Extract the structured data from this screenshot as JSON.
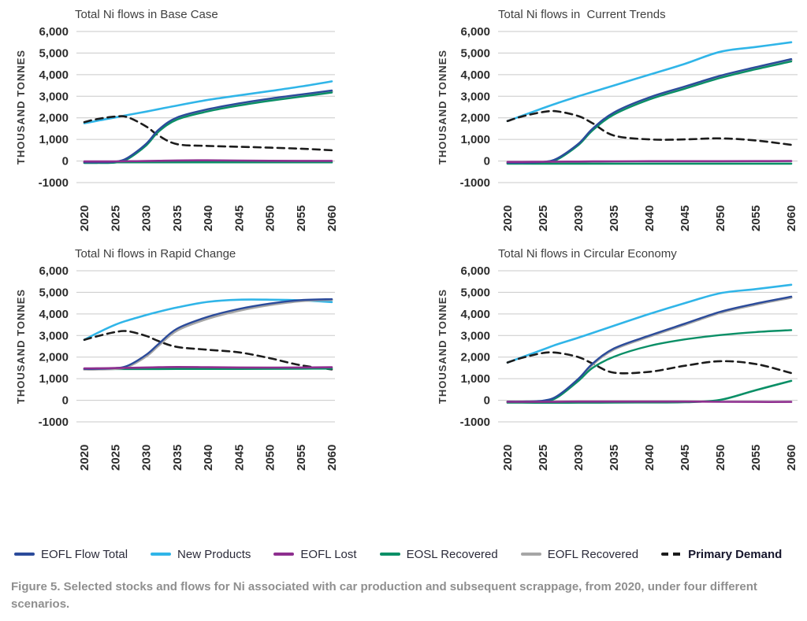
{
  "page": {
    "background": "#ffffff"
  },
  "colors": {
    "eofl_flow_total": "#2b4b9b",
    "new_products": "#30b5e8",
    "eofl_lost": "#8e2f8f",
    "eosl_recovered": "#0a8f66",
    "eofl_recovered": "#a6a6a6",
    "primary_demand": "#1c1c1c",
    "gridline": "#c9c9c9"
  },
  "legend": {
    "items": [
      {
        "key": "eofl-flow-total",
        "label": "EOFL Flow Total",
        "color": "#2b4b9b",
        "dash": false,
        "bold": false
      },
      {
        "key": "new-products",
        "label": "New Products",
        "color": "#30b5e8",
        "dash": false,
        "bold": false
      },
      {
        "key": "eofl-lost",
        "label": "EOFL Lost",
        "color": "#8e2f8f",
        "dash": false,
        "bold": false
      },
      {
        "key": "eosl-recovered",
        "label": "EOSL Recovered",
        "color": "#0a8f66",
        "dash": false,
        "bold": false
      },
      {
        "key": "eofl-recovered",
        "label": "EOFL Recovered",
        "color": "#a6a6a6",
        "dash": false,
        "bold": false
      },
      {
        "key": "primary-demand",
        "label": "Primary Demand",
        "color": "#1c1c1c",
        "dash": true,
        "bold": true
      }
    ]
  },
  "caption": {
    "text": "Figure 5. Selected stocks and flows for Ni associated with car production and subsequent scrappage, from 2020, under four different scenarios."
  },
  "chart_data": [
    {
      "type": "line",
      "title": "Total Ni flows in Base Case",
      "ylabel": "THOUSAND TONNES",
      "ylim": [
        -1000,
        6000
      ],
      "xlim": [
        2020,
        2060
      ],
      "grid": true,
      "yticks": [
        {
          "value": 6000,
          "label": "6,000"
        },
        {
          "value": 5000,
          "label": "5,000"
        },
        {
          "value": 4000,
          "label": "4,000"
        },
        {
          "value": 3000,
          "label": "3,000"
        },
        {
          "value": 2000,
          "label": "2,000"
        },
        {
          "value": 1000,
          "label": "1,000"
        },
        {
          "value": 0,
          "label": "0"
        },
        {
          "value": -1000,
          "label": "-1000"
        }
      ],
      "xticks": [
        2020,
        2025,
        2030,
        2035,
        2040,
        2045,
        2050,
        2055,
        2060
      ],
      "x": [
        2020,
        2022,
        2025,
        2027,
        2030,
        2032,
        2035,
        2040,
        2045,
        2050,
        2055,
        2060
      ],
      "series": [
        {
          "key": "new-products",
          "name": "New Products",
          "color": "#30b5e8",
          "dash": false,
          "width": 2.6,
          "values": [
            1750,
            1860,
            2020,
            2130,
            2290,
            2400,
            2570,
            2830,
            3040,
            3240,
            3450,
            3690
          ]
        },
        {
          "key": "primary-demand",
          "name": "Primary Demand",
          "color": "#1c1c1c",
          "dash": true,
          "width": 2.6,
          "values": [
            1800,
            1940,
            2060,
            2030,
            1600,
            1180,
            780,
            700,
            660,
            620,
            570,
            500
          ]
        },
        {
          "key": "eosl-recovered-2",
          "name": "EOSL Recovered",
          "color": "#0a8f66",
          "dash": false,
          "width": 2.6,
          "values": [
            -60,
            -60,
            -60,
            -60,
            -60,
            -60,
            -60,
            -60,
            -60,
            -60,
            -60,
            -60
          ]
        },
        {
          "key": "eofl-recovered",
          "name": "EOFL Recovered",
          "color": "#a6a6a6",
          "dash": false,
          "width": 3.2,
          "values": [
            -75,
            -75,
            -50,
            120,
            760,
            1400,
            1970,
            2350,
            2620,
            2840,
            3030,
            3220
          ]
        },
        {
          "key": "eosl-recovered",
          "name": "EOSL Recovered",
          "color": "#0a8f66",
          "dash": false,
          "width": 2.4,
          "values": [
            -90,
            -90,
            -70,
            90,
            720,
            1360,
            1920,
            2300,
            2570,
            2790,
            2980,
            3170
          ]
        },
        {
          "key": "eofl-flow-total",
          "name": "EOFL Flow Total",
          "color": "#2b4b9b",
          "dash": false,
          "width": 2.4,
          "values": [
            -60,
            -60,
            -30,
            150,
            800,
            1450,
            2020,
            2400,
            2670,
            2890,
            3080,
            3270
          ]
        },
        {
          "key": "eofl-lost",
          "name": "EOFL Lost",
          "color": "#8e2f8f",
          "dash": false,
          "width": 2.6,
          "values": [
            -20,
            -20,
            -15,
            -10,
            0,
            10,
            25,
            30,
            20,
            10,
            5,
            5
          ]
        }
      ]
    },
    {
      "type": "line",
      "title": "Total Ni flows in  Current Trends",
      "ylabel": "THOUSAND TONNES",
      "ylim": [
        -1000,
        6000
      ],
      "xlim": [
        2020,
        2060
      ],
      "grid": true,
      "yticks": [
        {
          "value": 6000,
          "label": "6,000"
        },
        {
          "value": 5000,
          "label": "5,000"
        },
        {
          "value": 4000,
          "label": "4,000"
        },
        {
          "value": 3000,
          "label": "3,000"
        },
        {
          "value": 2000,
          "label": "2,000"
        },
        {
          "value": 1000,
          "label": "1,000"
        },
        {
          "value": 0,
          "label": "0"
        },
        {
          "value": -1000,
          "label": "-1000"
        }
      ],
      "xticks": [
        2020,
        2025,
        2030,
        2035,
        2040,
        2045,
        2050,
        2055,
        2060
      ],
      "x": [
        2020,
        2022,
        2025,
        2027,
        2030,
        2032,
        2035,
        2040,
        2045,
        2050,
        2055,
        2060
      ],
      "series": [
        {
          "key": "new-products",
          "name": "New Products",
          "color": "#30b5e8",
          "dash": false,
          "width": 2.6,
          "values": [
            1850,
            2090,
            2450,
            2680,
            3000,
            3200,
            3500,
            4000,
            4500,
            5060,
            5280,
            5500
          ]
        },
        {
          "key": "primary-demand",
          "name": "Primary Demand",
          "color": "#1c1c1c",
          "dash": true,
          "width": 2.6,
          "values": [
            1850,
            2060,
            2270,
            2300,
            2080,
            1750,
            1180,
            1000,
            1000,
            1050,
            950,
            750
          ]
        },
        {
          "key": "eosl-recovered-2",
          "name": "EOSL Recovered",
          "color": "#0a8f66",
          "dash": false,
          "width": 2.6,
          "values": [
            -120,
            -120,
            -120,
            -120,
            -120,
            -120,
            -120,
            -120,
            -120,
            -120,
            -120,
            -120
          ]
        },
        {
          "key": "eofl-recovered",
          "name": "EOFL Recovered",
          "color": "#a6a6a6",
          "dash": false,
          "width": 3.2,
          "values": [
            -95,
            -95,
            -60,
            95,
            770,
            1460,
            2200,
            2900,
            3400,
            3900,
            4300,
            4670
          ]
        },
        {
          "key": "eosl-recovered",
          "name": "EOSL Recovered",
          "color": "#0a8f66",
          "dash": false,
          "width": 2.4,
          "values": [
            -110,
            -110,
            -85,
            70,
            740,
            1420,
            2150,
            2850,
            3350,
            3850,
            4250,
            4610
          ]
        },
        {
          "key": "eofl-flow-total",
          "name": "EOFL Flow Total",
          "color": "#2b4b9b",
          "dash": false,
          "width": 2.4,
          "values": [
            -80,
            -80,
            -40,
            120,
            800,
            1500,
            2250,
            2950,
            3450,
            3950,
            4350,
            4720
          ]
        },
        {
          "key": "eofl-lost",
          "name": "EOFL Lost",
          "color": "#8e2f8f",
          "dash": false,
          "width": 2.6,
          "values": [
            -40,
            -40,
            -35,
            -30,
            -25,
            -20,
            -15,
            -10,
            -10,
            -10,
            -5,
            0
          ]
        }
      ]
    },
    {
      "type": "line",
      "title": "Total Ni flows in Rapid Change",
      "ylabel": "THOUSAND TONNES",
      "ylim": [
        -1000,
        6000
      ],
      "xlim": [
        2020,
        2060
      ],
      "grid": true,
      "yticks": [
        {
          "value": 6000,
          "label": "6,000"
        },
        {
          "value": 5000,
          "label": "5,000"
        },
        {
          "value": 4000,
          "label": "4,000"
        },
        {
          "value": 3000,
          "label": "3,000"
        },
        {
          "value": 2000,
          "label": "2,000"
        },
        {
          "value": 1000,
          "label": "1,000"
        },
        {
          "value": 0,
          "label": "0"
        },
        {
          "value": -1000,
          "label": "-1000"
        }
      ],
      "xticks": [
        2020,
        2025,
        2030,
        2035,
        2040,
        2045,
        2050,
        2055,
        2060
      ],
      "x": [
        2020,
        2022,
        2025,
        2027,
        2030,
        2032,
        2035,
        2040,
        2045,
        2050,
        2055,
        2060
      ],
      "series": [
        {
          "key": "new-products",
          "name": "New Products",
          "color": "#30b5e8",
          "dash": false,
          "width": 2.6,
          "values": [
            2800,
            3100,
            3500,
            3700,
            3950,
            4100,
            4300,
            4560,
            4660,
            4660,
            4630,
            4550
          ]
        },
        {
          "key": "primary-demand",
          "name": "Primary Demand",
          "color": "#1c1c1c",
          "dash": true,
          "width": 2.6,
          "values": [
            2800,
            2960,
            3160,
            3200,
            2980,
            2740,
            2470,
            2340,
            2220,
            1950,
            1620,
            1430
          ]
        },
        {
          "key": "eosl-recovered",
          "name": "EOSL Recovered",
          "color": "#0a8f66",
          "dash": false,
          "width": 2.6,
          "values": [
            1450,
            1450,
            1450,
            1450,
            1450,
            1450,
            1452,
            1455,
            1455,
            1458,
            1465,
            1470
          ]
        },
        {
          "key": "eofl-recovered",
          "name": "EOFL Recovered",
          "color": "#a6a6a6",
          "dash": false,
          "width": 3.2,
          "values": [
            1435,
            1438,
            1465,
            1555,
            2040,
            2540,
            3240,
            3790,
            4160,
            4420,
            4600,
            4660
          ]
        },
        {
          "key": "eofl-flow-total",
          "name": "EOFL Flow Total",
          "color": "#2b4b9b",
          "dash": false,
          "width": 2.4,
          "values": [
            1450,
            1455,
            1490,
            1600,
            2110,
            2610,
            3320,
            3870,
            4230,
            4480,
            4640,
            4685
          ]
        },
        {
          "key": "eofl-lost",
          "name": "EOFL Lost",
          "color": "#8e2f8f",
          "dash": false,
          "width": 2.6,
          "values": [
            1478,
            1482,
            1492,
            1502,
            1518,
            1532,
            1540,
            1530,
            1520,
            1515,
            1520,
            1532
          ]
        }
      ]
    },
    {
      "type": "line",
      "title": "Total Ni flows in Circular Economy",
      "ylabel": "THOUSAND TONNES",
      "ylim": [
        -1000,
        6000
      ],
      "xlim": [
        2020,
        2060
      ],
      "grid": true,
      "yticks": [
        {
          "value": 6000,
          "label": "6,000"
        },
        {
          "value": 5000,
          "label": "5,000"
        },
        {
          "value": 4000,
          "label": "4,000"
        },
        {
          "value": 3000,
          "label": "3,000"
        },
        {
          "value": 2000,
          "label": "2,000"
        },
        {
          "value": 1000,
          "label": "1,000"
        },
        {
          "value": 0,
          "label": "0"
        },
        {
          "value": -1000,
          "label": "-1000"
        }
      ],
      "xticks": [
        2020,
        2025,
        2030,
        2035,
        2040,
        2045,
        2050,
        2055,
        2060
      ],
      "x": [
        2020,
        2022,
        2025,
        2027,
        2030,
        2032,
        2035,
        2040,
        2045,
        2050,
        2055,
        2060
      ],
      "series": [
        {
          "key": "new-products",
          "name": "New Products",
          "color": "#30b5e8",
          "dash": false,
          "width": 2.6,
          "values": [
            1750,
            1990,
            2350,
            2590,
            2900,
            3120,
            3450,
            4000,
            4500,
            4960,
            5150,
            5350
          ]
        },
        {
          "key": "primary-demand",
          "name": "Primary Demand",
          "color": "#1c1c1c",
          "dash": true,
          "width": 2.6,
          "values": [
            1750,
            1960,
            2190,
            2200,
            2000,
            1700,
            1280,
            1320,
            1600,
            1810,
            1680,
            1260
          ]
        },
        {
          "key": "eosl-recovered-2",
          "name": "EOSL Recovered",
          "color": "#0a8f66",
          "dash": false,
          "width": 2.6,
          "values": [
            -110,
            -110,
            -115,
            -115,
            -110,
            -110,
            -105,
            -100,
            -90,
            20,
            470,
            900
          ]
        },
        {
          "key": "eofl-recovered",
          "name": "EOFL Recovered",
          "color": "#a6a6a6",
          "dash": false,
          "width": 3.2,
          "values": [
            -75,
            -75,
            -40,
            170,
            960,
            1660,
            2360,
            2960,
            3510,
            4060,
            4440,
            4760
          ]
        },
        {
          "key": "eosl-recovered",
          "name": "EOSL Recovered",
          "color": "#0a8f66",
          "dash": false,
          "width": 2.4,
          "values": [
            -90,
            -90,
            -60,
            130,
            900,
            1500,
            2020,
            2520,
            2820,
            3020,
            3160,
            3250
          ]
        },
        {
          "key": "eofl-flow-total",
          "name": "EOFL Flow Total",
          "color": "#2b4b9b",
          "dash": false,
          "width": 2.4,
          "values": [
            -60,
            -60,
            -20,
            200,
            1000,
            1700,
            2400,
            3000,
            3550,
            4100,
            4480,
            4800
          ]
        },
        {
          "key": "eofl-lost",
          "name": "EOFL Lost",
          "color": "#8e2f8f",
          "dash": false,
          "width": 2.6,
          "values": [
            -70,
            -70,
            -70,
            -65,
            -60,
            -60,
            -60,
            -60,
            -60,
            -70,
            -75,
            -75
          ]
        }
      ]
    }
  ]
}
